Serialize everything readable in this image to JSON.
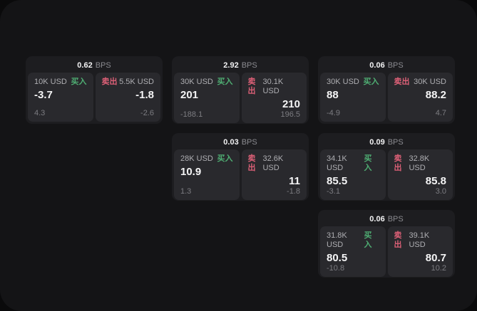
{
  "labels": {
    "bps": "BPS",
    "buy": "买入",
    "sell": "卖出"
  },
  "colors": {
    "background": "#0a0a0b",
    "frame": "#141416",
    "card": "#1d1d20",
    "panel": "#29292d",
    "buy_green": "#4fae73",
    "sell_red": "#dd6077"
  },
  "cards": [
    {
      "bps": "0.62",
      "buy": {
        "amount": "10K USD",
        "value": "-3.7",
        "delta": "4.3"
      },
      "sell": {
        "amount": "5.5K USD",
        "value": "-1.8",
        "delta": "-2.6"
      }
    },
    {
      "bps": "2.92",
      "buy": {
        "amount": "30K USD",
        "value": "201",
        "delta": "-188.1"
      },
      "sell": {
        "amount": "30.1K USD",
        "value": "210",
        "delta": "196.5"
      }
    },
    {
      "bps": "0.06",
      "buy": {
        "amount": "30K USD",
        "value": "88",
        "delta": "-4.9"
      },
      "sell": {
        "amount": "30K USD",
        "value": "88.2",
        "delta": "4.7"
      }
    },
    {
      "bps": "0.03",
      "buy": {
        "amount": "28K USD",
        "value": "10.9",
        "delta": "1.3"
      },
      "sell": {
        "amount": "32.6K USD",
        "value": "11",
        "delta": "-1.8"
      }
    },
    {
      "bps": "0.09",
      "buy": {
        "amount": "34.1K USD",
        "value": "85.5",
        "delta": "-3.1"
      },
      "sell": {
        "amount": "32.8K USD",
        "value": "85.8",
        "delta": "3.0"
      }
    },
    {
      "bps": "0.06",
      "buy": {
        "amount": "31.8K USD",
        "value": "80.5",
        "delta": "-10.8"
      },
      "sell": {
        "amount": "39.1K USD",
        "value": "80.7",
        "delta": "10.2"
      }
    }
  ]
}
